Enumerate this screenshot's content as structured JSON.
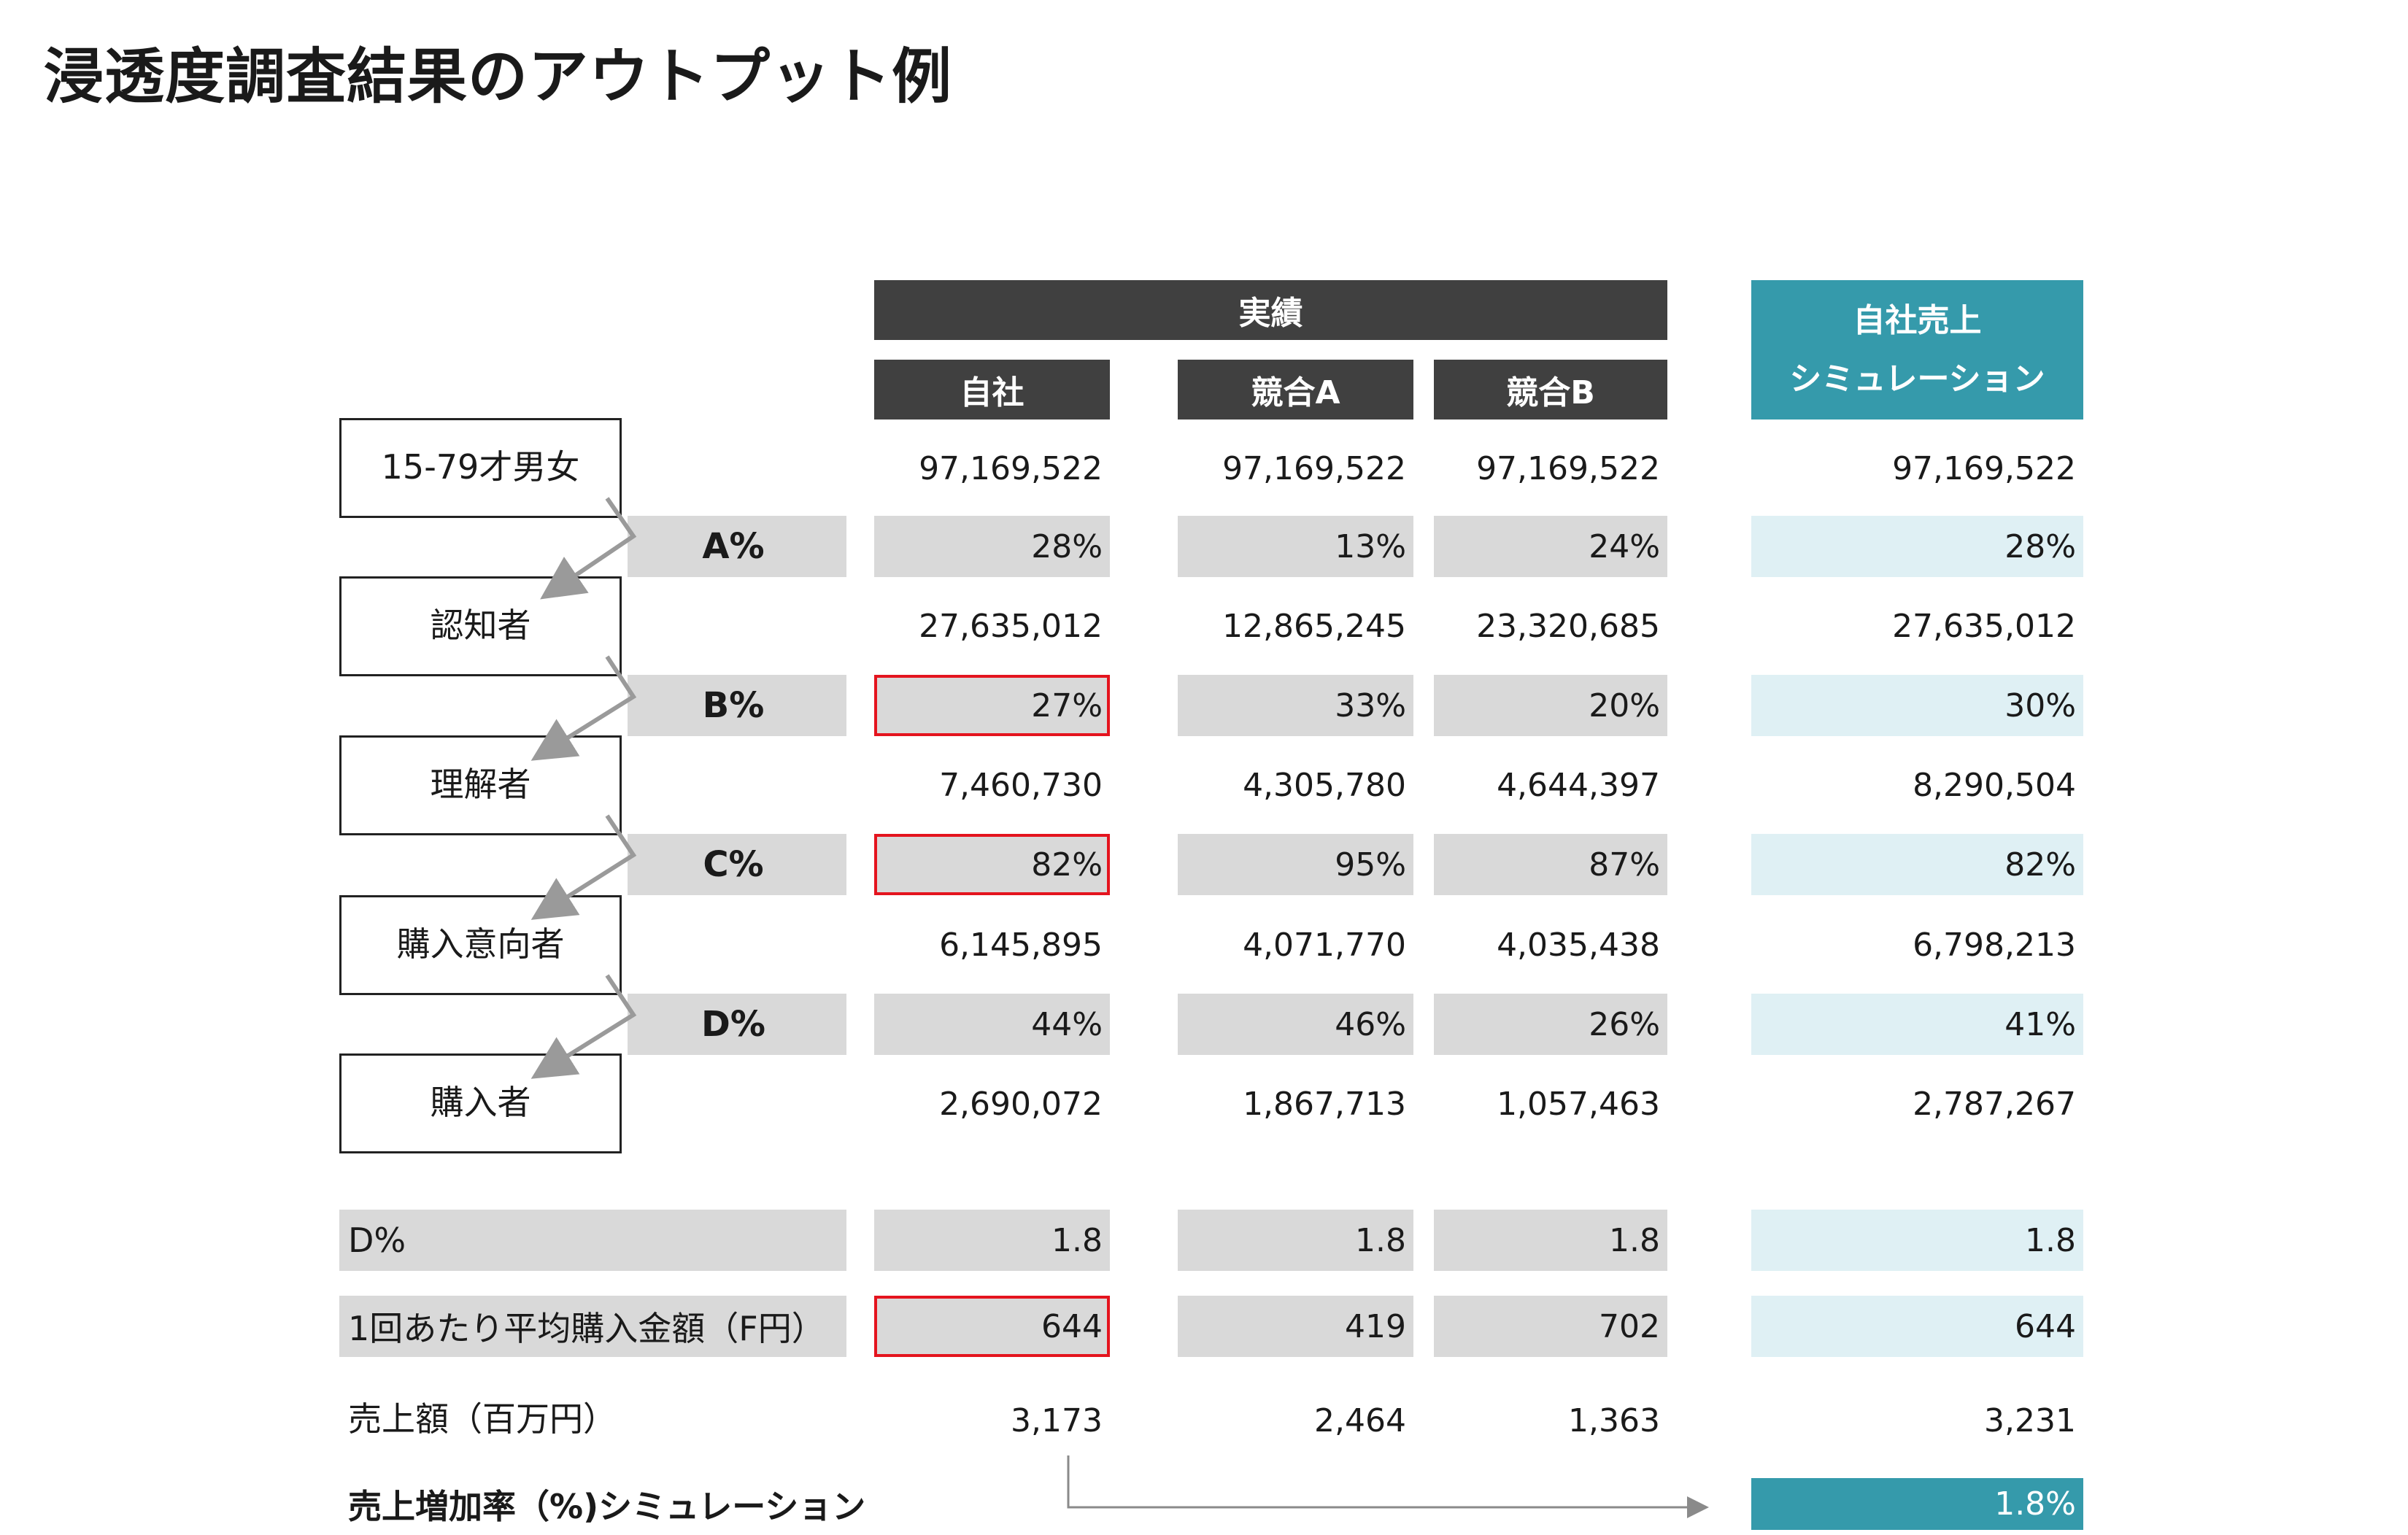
{
  "page": {
    "title": "浸透度調査結果のアウトプット例"
  },
  "header": {
    "actual": "実績",
    "col_self": "自社",
    "col_a": "競合A",
    "col_b": "競合B",
    "sim": "自社売上\nシミュレーション"
  },
  "funnel": {
    "stages": [
      "15-79才男女",
      "認知者",
      "理解者",
      "購入意向者",
      "購入者"
    ],
    "rate_labels": [
      "A%",
      "B%",
      "C%",
      "D%"
    ]
  },
  "rows": {
    "pop": {
      "self": "97,169,522",
      "a": "97,169,522",
      "b": "97,169,522",
      "sim": "97,169,522"
    },
    "rate_a": {
      "self": "28%",
      "a": "13%",
      "b": "24%",
      "sim": "28%"
    },
    "aware": {
      "self": "27,635,012",
      "a": "12,865,245",
      "b": "23,320,685",
      "sim": "27,635,012"
    },
    "rate_b": {
      "self": "27%",
      "a": "33%",
      "b": "20%",
      "sim": "30%"
    },
    "understand": {
      "self": "7,460,730",
      "a": "4,305,780",
      "b": "4,644,397",
      "sim": "8,290,504"
    },
    "rate_c": {
      "self": "82%",
      "a": "95%",
      "b": "87%",
      "sim": "82%"
    },
    "intent": {
      "self": "6,145,895",
      "a": "4,071,770",
      "b": "4,035,438",
      "sim": "6,798,213"
    },
    "rate_d": {
      "self": "44%",
      "a": "46%",
      "b": "26%",
      "sim": "41%"
    },
    "buyers": {
      "self": "2,690,072",
      "a": "1,867,713",
      "b": "1,057,463",
      "sim": "2,787,267"
    }
  },
  "bottom": {
    "dpct": {
      "label": "D%",
      "self": "1.8",
      "a": "1.8",
      "b": "1.8",
      "sim": "1.8"
    },
    "avg": {
      "label": "1回あたり平均購入金額（F円）",
      "self": "644",
      "a": "419",
      "b": "702",
      "sim": "644"
    },
    "sales": {
      "label": "売上額（百万円）",
      "self": "3,173",
      "a": "2,464",
      "b": "1,363",
      "sim": "3,231"
    },
    "growth": {
      "label": "売上増加率（%)シミュレーション",
      "sim": "1.8%"
    }
  },
  "colors": {
    "dark": "#404040",
    "teal": "#359aab",
    "light_teal": "#dff0f4",
    "gray": "#d9d9d9",
    "highlight": "#e4141e"
  }
}
